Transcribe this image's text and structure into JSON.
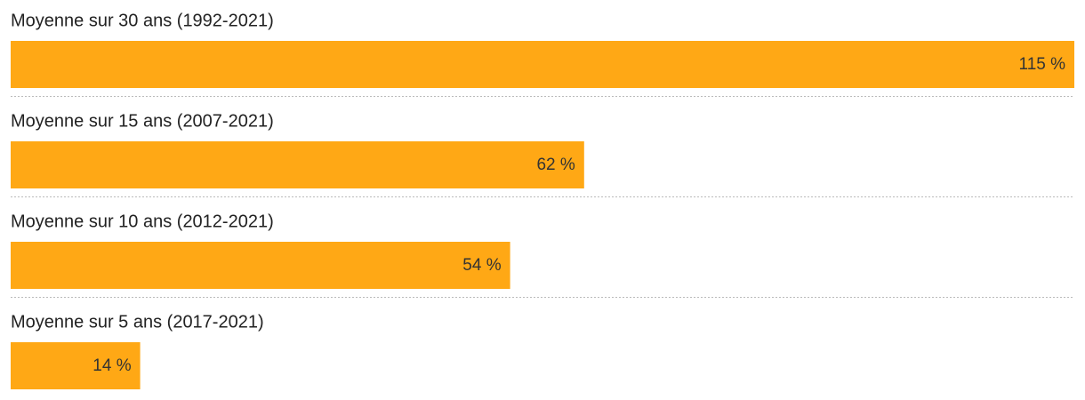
{
  "chart_data": {
    "type": "bar",
    "orientation": "horizontal",
    "categories": [
      "Moyenne sur 30 ans (1992-2021)",
      "Moyenne sur 15 ans (2007-2021)",
      "Moyenne sur 10 ans (2012-2021)",
      "Moyenne sur 5 ans (2017-2021)"
    ],
    "values": [
      115,
      62,
      54,
      14
    ],
    "value_labels": [
      "115 %",
      "62 %",
      "54 %",
      "14 %"
    ],
    "color": "#ffa815"
  }
}
